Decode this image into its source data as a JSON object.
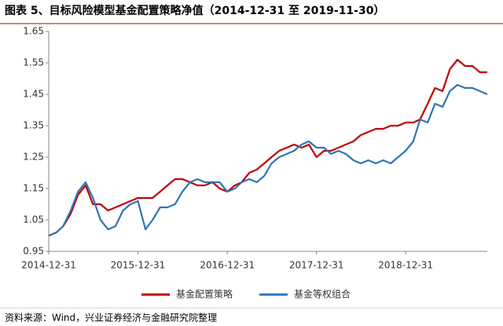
{
  "chart_data": {
    "type": "line",
    "title": "图表 5、目标风险模型基金配置策略净值（2014-12-31 至 2019-11-30）",
    "source": "资料来源：Wind，兴业证券经济与金融研究院整理",
    "x": [
      "2014-12-31",
      "2015-01-31",
      "2015-02-28",
      "2015-03-31",
      "2015-04-30",
      "2015-05-31",
      "2015-06-30",
      "2015-07-31",
      "2015-08-31",
      "2015-09-30",
      "2015-10-31",
      "2015-11-30",
      "2015-12-31",
      "2016-01-31",
      "2016-02-29",
      "2016-03-31",
      "2016-04-30",
      "2016-05-31",
      "2016-06-30",
      "2016-07-31",
      "2016-08-31",
      "2016-09-30",
      "2016-10-31",
      "2016-11-30",
      "2016-12-31",
      "2017-01-31",
      "2017-02-28",
      "2017-03-31",
      "2017-04-30",
      "2017-05-31",
      "2017-06-30",
      "2017-07-31",
      "2017-08-31",
      "2017-09-30",
      "2017-10-31",
      "2017-11-30",
      "2017-12-31",
      "2018-01-31",
      "2018-02-28",
      "2018-03-31",
      "2018-04-30",
      "2018-05-31",
      "2018-06-30",
      "2018-07-31",
      "2018-08-31",
      "2018-09-30",
      "2018-10-31",
      "2018-11-30",
      "2018-12-31",
      "2019-01-31",
      "2019-02-28",
      "2019-03-31",
      "2019-04-30",
      "2019-05-31",
      "2019-06-30",
      "2019-07-31",
      "2019-08-31",
      "2019-09-30",
      "2019-10-31",
      "2019-11-30"
    ],
    "series": [
      {
        "name": "基金配置策略",
        "color": "#c00000",
        "values": [
          1.0,
          1.01,
          1.03,
          1.07,
          1.13,
          1.16,
          1.1,
          1.1,
          1.08,
          1.09,
          1.1,
          1.11,
          1.12,
          1.12,
          1.12,
          1.14,
          1.16,
          1.18,
          1.18,
          1.17,
          1.16,
          1.16,
          1.17,
          1.15,
          1.14,
          1.16,
          1.17,
          1.2,
          1.21,
          1.23,
          1.25,
          1.27,
          1.28,
          1.29,
          1.28,
          1.29,
          1.25,
          1.27,
          1.27,
          1.28,
          1.29,
          1.3,
          1.32,
          1.33,
          1.34,
          1.34,
          1.35,
          1.35,
          1.36,
          1.36,
          1.37,
          1.42,
          1.47,
          1.46,
          1.53,
          1.56,
          1.54,
          1.54,
          1.52,
          1.52
        ]
      },
      {
        "name": "基金等权组合",
        "color": "#2e75b6",
        "values": [
          1.0,
          1.01,
          1.03,
          1.08,
          1.14,
          1.17,
          1.12,
          1.05,
          1.02,
          1.03,
          1.08,
          1.1,
          1.11,
          1.02,
          1.05,
          1.09,
          1.09,
          1.1,
          1.14,
          1.17,
          1.18,
          1.17,
          1.17,
          1.17,
          1.14,
          1.15,
          1.17,
          1.18,
          1.17,
          1.19,
          1.23,
          1.25,
          1.26,
          1.27,
          1.29,
          1.3,
          1.28,
          1.28,
          1.26,
          1.27,
          1.26,
          1.24,
          1.23,
          1.24,
          1.23,
          1.24,
          1.23,
          1.25,
          1.27,
          1.3,
          1.37,
          1.36,
          1.42,
          1.41,
          1.46,
          1.48,
          1.47,
          1.47,
          1.46,
          1.45
        ]
      }
    ],
    "xlim": [
      "2014-12-31",
      "2019-11-30"
    ],
    "xticks": [
      "2014-12-31",
      "2015-12-31",
      "2016-12-31",
      "2017-12-31",
      "2018-12-31"
    ],
    "ylim": [
      0.95,
      1.65
    ],
    "yticks": [
      0.95,
      1.05,
      1.15,
      1.25,
      1.35,
      1.45,
      1.55,
      1.65
    ],
    "grid": false,
    "legend": "bottom"
  }
}
